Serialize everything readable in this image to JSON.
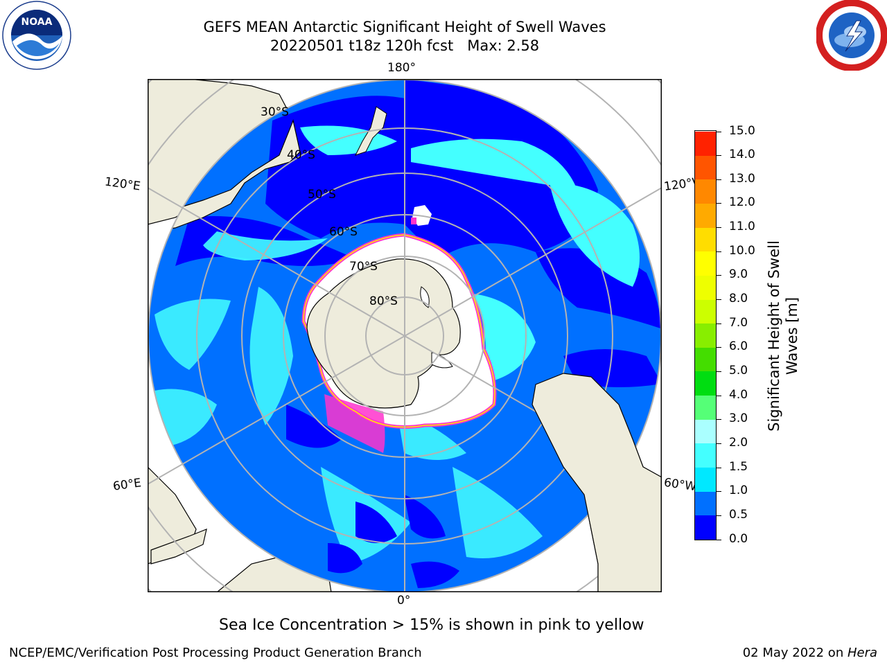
{
  "header": {
    "title_line1": "GEFS MEAN Antarctic Significant Height of Swell Waves",
    "title_line2": "20220501 t18z 120h fcst   Max: 2.58"
  },
  "logos": {
    "left": "noaa-logo",
    "right": "national-weather-service-logo"
  },
  "map": {
    "projection": "south-polar-stereographic",
    "longitude_labels": {
      "top": "180°",
      "bottom": "0°",
      "left_upper": "120°E",
      "left_lower": "60°E",
      "right_upper": "120°W",
      "right_lower": "60°W"
    },
    "latitude_labels": [
      "30°S",
      "40°S",
      "50°S",
      "60°S",
      "70°S",
      "80°S"
    ],
    "colors": {
      "land": "#eeecdc",
      "graticule": "#b3b3b3",
      "ice_pink": "#ff33cc",
      "ice_yellow": "#ffee00"
    }
  },
  "colorbar": {
    "label": "Significant Height of Swell Waves [m]",
    "ticks": [
      "0.0",
      "0.5",
      "1.0",
      "1.5",
      "2.0",
      "3.0",
      "4.0",
      "5.0",
      "6.0",
      "7.0",
      "8.0",
      "9.0",
      "10.0",
      "11.0",
      "12.0",
      "13.0",
      "14.0",
      "15.0"
    ],
    "colors": [
      "#0000ff",
      "#0070ff",
      "#00e8ff",
      "#44ffff",
      "#aaffff",
      "#55ff77",
      "#00dd11",
      "#44dd00",
      "#88ee00",
      "#ccff00",
      "#eeff00",
      "#ffff00",
      "#ffdd00",
      "#ffaa00",
      "#ff8800",
      "#ff5500",
      "#ff2200"
    ]
  },
  "notes": {
    "ice": "Sea Ice Concentration > 15% is shown in pink to yellow"
  },
  "footer": {
    "left": "NCEP/EMC/Verification Post Processing Product Generation Branch",
    "right_date": "02 May 2022 on ",
    "right_host": "Hera"
  }
}
